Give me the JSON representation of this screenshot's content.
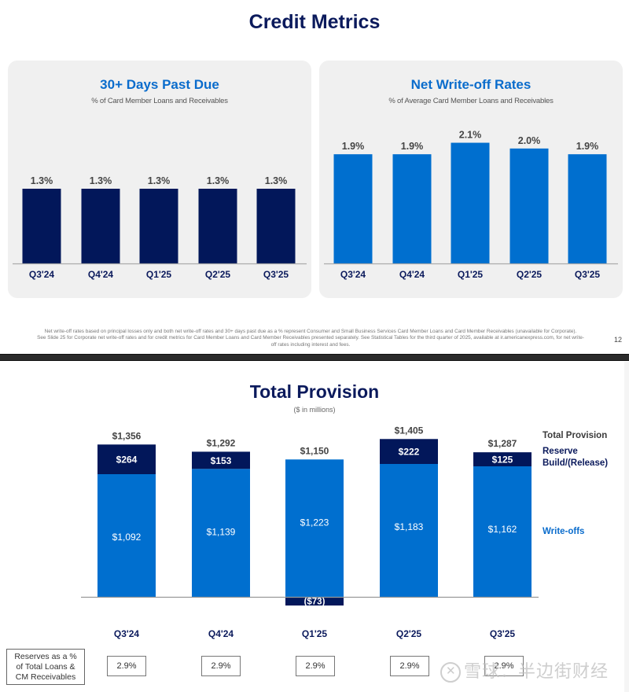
{
  "slide1": {
    "title": "Credit Metrics",
    "footnote_lines": [
      "Net write-off rates based on principal losses only and both net write-off rates and 30+ days past due as a % represent Consumer and Small Business Services Card Member Loans and Card Member Receivables (unavailable for Corporate).",
      "See Slide 25 for Corporate net write-off rates and for credit metrics for Card Member Loans and Card Member Receivables presented separately. See Statistical Tables for the third quarter of 2025, available at ir.americanexpress.com, for net write-",
      "off rates including interest and fees."
    ],
    "page_number": "12"
  },
  "slide2": {
    "title": "Total Provision",
    "subtitle": "($ in millions)",
    "legend": {
      "total": "Total Provision",
      "reserve_line1": "Reserve",
      "reserve_line2": "Build/(Release)",
      "writeoffs": "Write-offs"
    },
    "reserves_row": {
      "label_lines": [
        "Reserves as a %",
        "of Total Loans &",
        "CM Receivables"
      ],
      "values": [
        "2.9%",
        "2.9%",
        "2.9%",
        "2.9%",
        "2.9%"
      ]
    }
  },
  "watermark": "雪球：半边街财经",
  "colors": {
    "navy": "#02175a",
    "blue": "#006fcf",
    "title_navy": "#0b1a5c",
    "title_blue": "#0a6ccc",
    "panel_bg": "#f0f0f0"
  },
  "chart_data": [
    {
      "type": "bar",
      "title": "30+ Days Past Due",
      "subtitle": "% of Card Member Loans and Receivables",
      "categories": [
        "Q3'24",
        "Q4'24",
        "Q1'25",
        "Q2'25",
        "Q3'25"
      ],
      "values": [
        1.3,
        1.3,
        1.3,
        1.3,
        1.3
      ],
      "labels": [
        "1.3%",
        "1.3%",
        "1.3%",
        "1.3%",
        "1.3%"
      ],
      "unit": "%",
      "ylim": [
        0,
        2.6
      ],
      "grid": false,
      "color": "#02175a"
    },
    {
      "type": "bar",
      "title": "Net Write-off Rates",
      "subtitle": "% of Average Card Member Loans and Receivables",
      "categories": [
        "Q3'24",
        "Q4'24",
        "Q1'25",
        "Q2'25",
        "Q3'25"
      ],
      "values": [
        1.9,
        1.9,
        2.1,
        2.0,
        1.9
      ],
      "labels": [
        "1.9%",
        "1.9%",
        "2.1%",
        "2.0%",
        "1.9%"
      ],
      "unit": "%",
      "ylim": [
        0,
        2.6
      ],
      "grid": false,
      "color": "#006fcf"
    },
    {
      "type": "bar",
      "stacked": true,
      "title": "Total Provision",
      "subtitle": "($ in millions)",
      "categories": [
        "Q3'24",
        "Q4'24",
        "Q1'25",
        "Q2'25",
        "Q3'25"
      ],
      "series": [
        {
          "name": "Write-offs",
          "values": [
            1092,
            1139,
            1223,
            1183,
            1162
          ],
          "labels": [
            "$1,092",
            "$1,139",
            "$1,223",
            "$1,183",
            "$1,162"
          ],
          "color": "#006fcf"
        },
        {
          "name": "Reserve Build/(Release)",
          "values": [
            264,
            153,
            -73,
            222,
            125
          ],
          "labels": [
            "$264",
            "$153",
            "($73)",
            "$222",
            "$125"
          ],
          "color": "#02175a"
        }
      ],
      "totals": [
        1356,
        1292,
        1150,
        1405,
        1287
      ],
      "total_labels": [
        "$1,356",
        "$1,292",
        "$1,150",
        "$1,405",
        "$1,287"
      ],
      "legend": "right",
      "grid": false
    }
  ]
}
